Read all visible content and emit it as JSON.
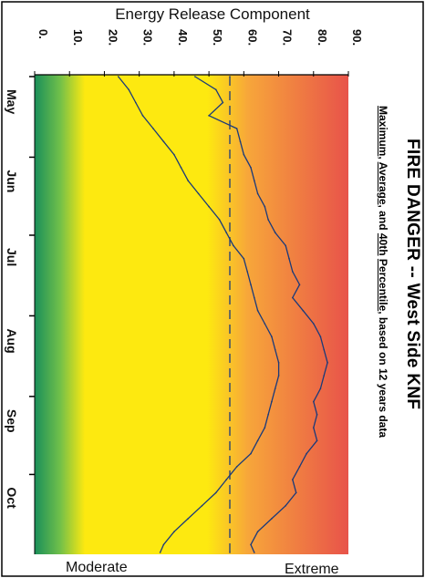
{
  "header": {
    "xaxis_title": "Energy Release Component"
  },
  "footer": {
    "left_label": "Moderate",
    "right_label": "Extreme"
  },
  "title": {
    "main": "FIRE DANGER -- West Side KNF",
    "sub_1": "Maximum",
    "sub_sep1": ", ",
    "sub_2": "Average",
    "sub_3": ", and ",
    "sub_4": "40th",
    "sub_5": " ",
    "sub_6": "Percentile",
    "sub_7": ", based on 12 years data"
  },
  "colors": {
    "low": "#1a8f5a",
    "mid": "#fde910",
    "high": "#e8534a",
    "line": "#1a3a7a"
  },
  "chart_data": {
    "type": "line",
    "title": "FIRE DANGER -- West Side KNF",
    "xlabel": "",
    "ylabel": "Energy Release Component",
    "ylim": [
      0,
      90
    ],
    "yticks": [
      "0",
      "10",
      "20",
      "30",
      "40",
      "50",
      "60",
      "70",
      "80",
      "90"
    ],
    "xlim_days": [
      0,
      183
    ],
    "month_ticks": [
      {
        "label": "May",
        "day": 0
      },
      {
        "label": "Jun",
        "day": 31
      },
      {
        "label": "Jul",
        "day": 61
      },
      {
        "label": "Aug",
        "day": 92
      },
      {
        "label": "Sep",
        "day": 123
      },
      {
        "label": "Oct",
        "day": 153
      }
    ],
    "series": [
      {
        "name": "Maximum",
        "style": "solid",
        "x": [
          0,
          5,
          10,
          15,
          20,
          25,
          30,
          35,
          40,
          45,
          50,
          55,
          60,
          65,
          70,
          75,
          80,
          85,
          90,
          95,
          100,
          105,
          110,
          115,
          120,
          125,
          130,
          135,
          140,
          145,
          150,
          155,
          160,
          165,
          170,
          175,
          180,
          183
        ],
        "y": [
          46,
          52,
          54,
          50,
          58,
          59,
          60,
          62,
          63,
          64,
          66,
          67,
          69,
          72,
          73,
          74,
          76,
          74,
          77,
          80,
          82,
          83,
          84,
          83,
          82,
          80,
          81,
          80,
          81,
          78,
          76,
          74,
          75,
          72,
          68,
          64,
          62,
          63
        ]
      },
      {
        "name": "Average",
        "style": "solid",
        "x": [
          0,
          5,
          10,
          15,
          20,
          25,
          30,
          35,
          40,
          45,
          50,
          55,
          60,
          65,
          70,
          75,
          80,
          85,
          90,
          95,
          100,
          105,
          110,
          115,
          120,
          125,
          130,
          135,
          140,
          145,
          150,
          155,
          160,
          165,
          170,
          175,
          180,
          183
        ],
        "y": [
          24,
          27,
          29,
          31,
          34,
          37,
          40,
          42,
          44,
          47,
          50,
          53,
          55,
          57,
          60,
          61,
          62,
          63,
          64,
          66,
          68,
          69,
          70,
          70,
          69,
          68,
          67,
          66,
          64,
          62,
          58,
          55,
          52,
          48,
          44,
          40,
          37,
          36
        ]
      },
      {
        "name": "40th Percentile",
        "style": "dashed",
        "x": [
          0,
          183
        ],
        "y": [
          56,
          56
        ]
      }
    ]
  }
}
